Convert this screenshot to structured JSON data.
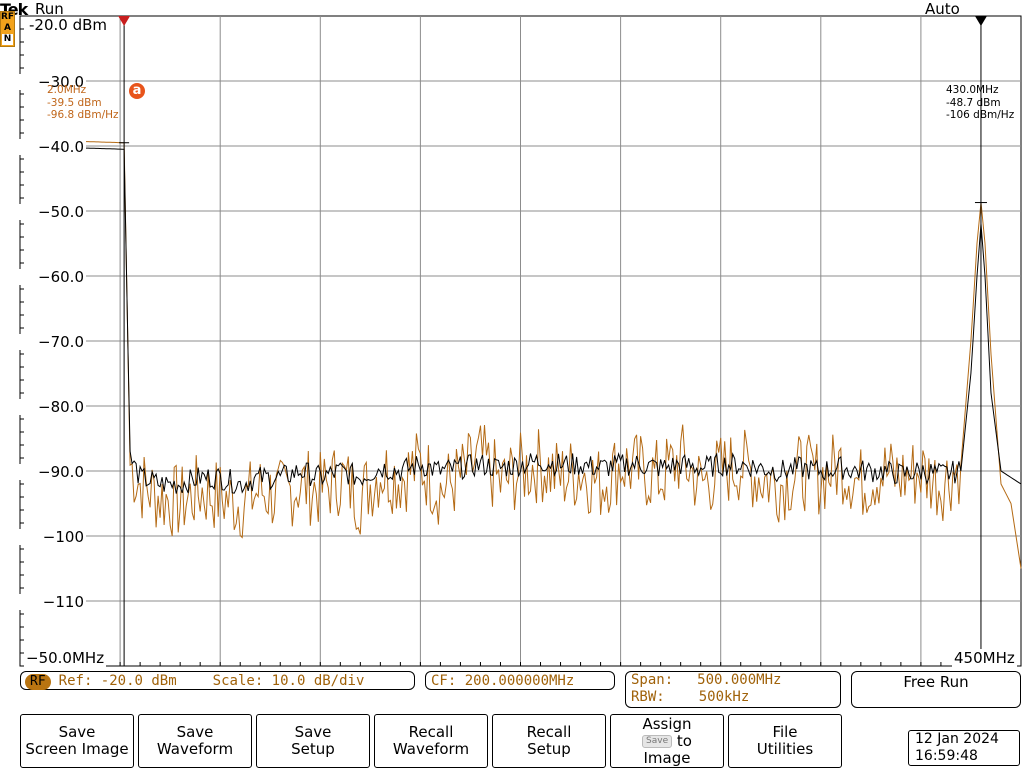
{
  "header": {
    "brand": "Tek",
    "run_state": "Run",
    "trigger_mode": "Auto",
    "side_badge": [
      "RF",
      "A",
      "N"
    ]
  },
  "y_axis": {
    "ref_label": "-20.0 dBm",
    "labels": [
      "−30.0",
      "−40.0",
      "−50.0",
      "−60.0",
      "−70.0",
      "−80.0",
      "−90.0",
      "−100",
      "−110"
    ]
  },
  "x_axis": {
    "start_label": "−50.0MHz",
    "stop_label": "450MHz"
  },
  "markers": {
    "a": {
      "symbol": "a",
      "freq": "2.0MHz",
      "amplitude": "-39.5 dBm",
      "density": "-96.8 dBm/Hz"
    },
    "b": {
      "freq": "430.0MHz",
      "amplitude": "-48.7 dBm",
      "density": "-106 dBm/Hz"
    }
  },
  "chart_data": {
    "type": "line",
    "x_unit": "MHz",
    "y_unit": "dBm",
    "xlim": [
      -50,
      450
    ],
    "ylim": [
      -120,
      -20
    ],
    "grid": true,
    "series": [
      {
        "color": "#b46a14",
        "x": [
          -50,
          2,
          5,
          10,
          20,
          30,
          40,
          50,
          60,
          70,
          80,
          90,
          100,
          110,
          120,
          130,
          140,
          150,
          160,
          170,
          180,
          190,
          200,
          210,
          220,
          230,
          240,
          250,
          260,
          270,
          280,
          290,
          300,
          310,
          320,
          330,
          340,
          350,
          360,
          370,
          380,
          390,
          400,
          410,
          420,
          425,
          428,
          430,
          432,
          435,
          440,
          445,
          450
        ],
        "y": [
          -39,
          -39.5,
          -89,
          -92,
          -94,
          -95,
          -93,
          -94,
          -95,
          -93,
          -94,
          -92,
          -93,
          -91,
          -94,
          -90,
          -91,
          -89,
          -93,
          -91,
          -88,
          -92,
          -90,
          -89,
          -91,
          -90,
          -92,
          -89,
          -90,
          -91,
          -88,
          -92,
          -90,
          -89,
          -91,
          -92,
          -90,
          -91,
          -89,
          -92,
          -90,
          -91,
          -90,
          -92,
          -89,
          -70,
          -55,
          -48.7,
          -55,
          -72,
          -92,
          -95,
          -105
        ]
      },
      {
        "color": "#000000",
        "x": [
          -50,
          2,
          5,
          10,
          20,
          30,
          40,
          50,
          60,
          70,
          80,
          90,
          100,
          110,
          120,
          130,
          140,
          150,
          160,
          170,
          180,
          190,
          200,
          210,
          220,
          230,
          240,
          250,
          260,
          270,
          280,
          290,
          300,
          310,
          320,
          330,
          340,
          350,
          360,
          370,
          380,
          390,
          400,
          410,
          420,
          425,
          428,
          430,
          432,
          435,
          440,
          445,
          450
        ],
        "y": [
          -40,
          -40.5,
          -88,
          -91,
          -92,
          -92,
          -91,
          -91,
          -92,
          -91,
          -91,
          -90,
          -91,
          -90,
          -91,
          -89.5,
          -90,
          -89,
          -90,
          -89.5,
          -89,
          -89.5,
          -89,
          -88.5,
          -89,
          -89,
          -89.5,
          -89,
          -89,
          -89.5,
          -89,
          -89.5,
          -89,
          -89,
          -89.5,
          -90,
          -89.5,
          -90,
          -89.5,
          -90,
          -90,
          -90.5,
          -90,
          -90.5,
          -90,
          -75,
          -60,
          -52,
          -60,
          -78,
          -90,
          -91,
          -92
        ]
      }
    ]
  },
  "status_bar": {
    "rf_badge": "RF",
    "ref_text": "Ref: -20.0 dBm",
    "scale_text": "Scale: 10.0 dB/div",
    "cf_text": "CF: 200.000000MHz",
    "span_label": "Span:",
    "span_value": "500.000MHz",
    "rbw_label": "RBW:",
    "rbw_value": "500kHz",
    "trigger_state": "Free Run"
  },
  "softkeys": [
    {
      "line1": "Save",
      "line2": "Screen Image"
    },
    {
      "line1": "Save",
      "line2": "Waveform"
    },
    {
      "line1": "Save",
      "line2": "Setup"
    },
    {
      "line1": "Recall",
      "line2": "Waveform"
    },
    {
      "line1": "Recall",
      "line2": "Setup"
    },
    {
      "line1": "Assign",
      "chip": "Save",
      "to": "to",
      "line2": "Image"
    },
    {
      "line1": "File",
      "line2": "Utilities"
    }
  ],
  "datetime": {
    "date": "12 Jan  2024",
    "time": "16:59:48"
  }
}
